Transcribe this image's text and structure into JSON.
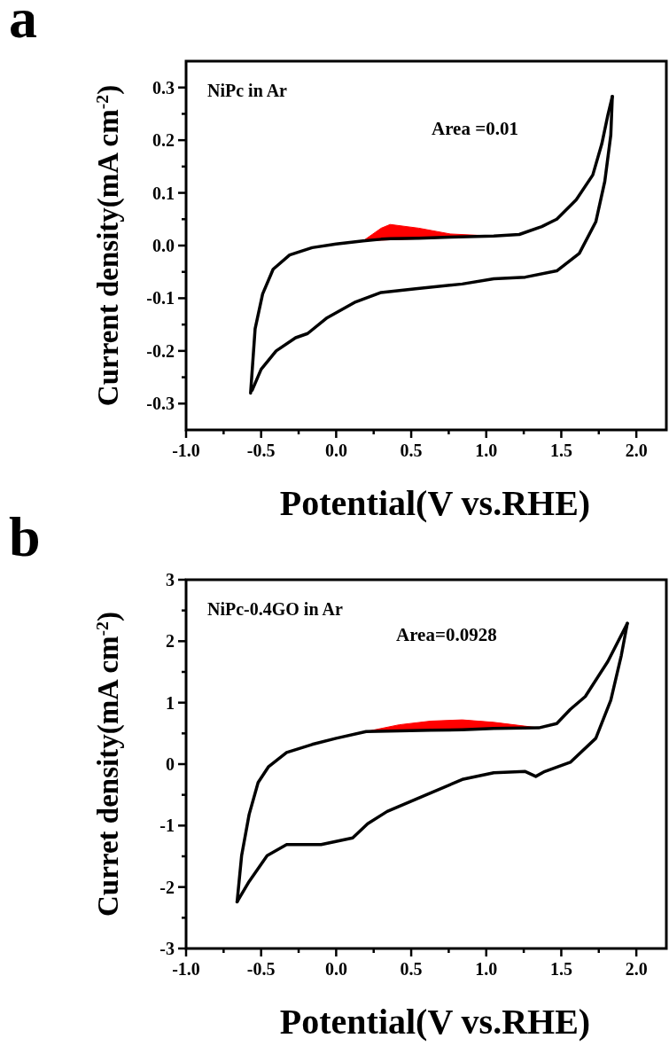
{
  "chart_data": [
    {
      "type": "line",
      "title": "a",
      "xlabel": "Potential(V vs.RHE)",
      "ylabel": "Current density(mA cm$^{-2}$)",
      "annotations": [
        "NiPc in Ar",
        "Area =0.01"
      ],
      "xlim": [
        -1,
        2.2
      ],
      "ylim": [
        -0.35,
        0.35
      ],
      "xticks": [
        {
          "value": -1,
          "label": "-1.0"
        },
        {
          "value": -0.75,
          "label": null
        },
        {
          "value": -0.5,
          "label": "-0.5"
        },
        {
          "value": -0.25,
          "label": null
        },
        {
          "value": 0,
          "label": "0.0"
        },
        {
          "value": 0.25,
          "label": null
        },
        {
          "value": 0.5,
          "label": "0.5"
        },
        {
          "value": 0.75,
          "label": null
        },
        {
          "value": 1,
          "label": "1.0"
        },
        {
          "value": 1.25,
          "label": null
        },
        {
          "value": 1.5,
          "label": "1.5"
        },
        {
          "value": 1.75,
          "label": null
        },
        {
          "value": 2,
          "label": "2.0"
        }
      ],
      "yticks": [
        {
          "value": -0.3,
          "label": "-0.3"
        },
        {
          "value": -0.25,
          "label": null
        },
        {
          "value": -0.2,
          "label": "-0.2"
        },
        {
          "value": -0.15,
          "label": null
        },
        {
          "value": -0.1,
          "label": "-0.1"
        },
        {
          "value": -0.05,
          "label": null
        },
        {
          "value": 0,
          "label": "0.0"
        },
        {
          "value": 0.05,
          "label": null
        },
        {
          "value": 0.1,
          "label": "0.1"
        },
        {
          "value": 0.15,
          "label": null
        },
        {
          "value": 0.2,
          "label": "0.2"
        },
        {
          "value": 0.25,
          "label": null
        },
        {
          "value": 0.3,
          "label": "0.3"
        }
      ],
      "series": [
        {
          "type": "area",
          "color": "#ff0000",
          "x": [
            0.18,
            0.3,
            0.36,
            0.55,
            0.76,
            1.05
          ],
          "values": [
            0.009,
            0.033,
            0.04,
            0.033,
            0.022,
            0.018
          ]
        },
        {
          "type": "line",
          "color": "#000000",
          "x": [
            -0.57,
            -0.54,
            -0.49,
            -0.42,
            -0.31,
            -0.16,
            0.0,
            0.18,
            0.3,
            0.36,
            0.55,
            0.76,
            1.05,
            1.22,
            1.37,
            1.47,
            1.6,
            1.71,
            1.77,
            1.81,
            1.84
          ],
          "values": [
            -0.28,
            -0.158,
            -0.092,
            -0.045,
            -0.018,
            -0.004,
            0.003,
            0.009,
            0.012,
            0.013,
            0.014,
            0.016,
            0.018,
            0.021,
            0.036,
            0.05,
            0.087,
            0.134,
            0.193,
            0.247,
            0.283
          ]
        },
        {
          "type": "line",
          "color": "#000000",
          "x": [
            1.84,
            1.83,
            1.79,
            1.73,
            1.62,
            1.47,
            1.26,
            1.05,
            0.84,
            0.53,
            0.3,
            0.13,
            -0.06,
            -0.19,
            -0.27,
            -0.4,
            -0.5,
            -0.56
          ],
          "values": [
            0.283,
            0.21,
            0.122,
            0.045,
            -0.015,
            -0.048,
            -0.06,
            -0.063,
            -0.073,
            -0.082,
            -0.089,
            -0.107,
            -0.137,
            -0.167,
            -0.175,
            -0.2,
            -0.235,
            -0.275
          ]
        }
      ]
    },
    {
      "type": "line",
      "title": "b",
      "xlabel": "Potential(V vs.RHE)",
      "ylabel": "Curret density(mA cm$^{-2}$)",
      "annotations": [
        "NiPc-0.4GO in Ar",
        "Area=0.0928"
      ],
      "xlim": [
        -1,
        2.2
      ],
      "ylim": [
        -3,
        3
      ],
      "xticks": [
        {
          "value": -1,
          "label": "-1.0"
        },
        {
          "value": -0.75,
          "label": null
        },
        {
          "value": -0.5,
          "label": "-0.5"
        },
        {
          "value": -0.25,
          "label": null
        },
        {
          "value": 0,
          "label": "0.0"
        },
        {
          "value": 0.25,
          "label": null
        },
        {
          "value": 0.5,
          "label": "0.5"
        },
        {
          "value": 0.75,
          "label": null
        },
        {
          "value": 1,
          "label": "1.0"
        },
        {
          "value": 1.25,
          "label": null
        },
        {
          "value": 1.5,
          "label": "1.5"
        },
        {
          "value": 1.75,
          "label": null
        },
        {
          "value": 2,
          "label": "2.0"
        }
      ],
      "yticks": [
        -3,
        {
          "value": -2.5,
          "label": null
        },
        -2,
        {
          "value": -1.5,
          "label": null
        },
        -1,
        {
          "value": -0.5,
          "label": null
        },
        0,
        {
          "value": 0.5,
          "label": null
        },
        1,
        {
          "value": 1.5,
          "label": null
        },
        2,
        {
          "value": 2.5,
          "label": null
        },
        3
      ],
      "series": [
        {
          "type": "area",
          "color": "#ff0000",
          "x": [
            0.2,
            0.42,
            0.63,
            0.84,
            1.05,
            1.35
          ],
          "values": [
            0.53,
            0.64,
            0.7,
            0.72,
            0.68,
            0.59
          ]
        },
        {
          "type": "line",
          "color": "#000000",
          "x": [
            -0.66,
            -0.63,
            -0.58,
            -0.52,
            -0.45,
            -0.33,
            -0.16,
            0.0,
            0.2,
            0.42,
            0.63,
            0.84,
            1.05,
            1.35,
            1.47,
            1.56,
            1.66,
            1.81,
            1.94
          ],
          "values": [
            -2.24,
            -1.49,
            -0.82,
            -0.3,
            -0.04,
            0.19,
            0.32,
            0.42,
            0.53,
            0.54,
            0.55,
            0.56,
            0.58,
            0.59,
            0.66,
            0.89,
            1.1,
            1.67,
            2.29
          ]
        },
        {
          "type": "line",
          "color": "#000000",
          "x": [
            1.94,
            1.9,
            1.83,
            1.73,
            1.56,
            1.39,
            1.33,
            1.26,
            1.05,
            0.84,
            0.59,
            0.34,
            0.21,
            0.11,
            -0.1,
            -0.33,
            -0.46,
            -0.58,
            -0.66
          ],
          "values": [
            2.29,
            1.77,
            1.04,
            0.42,
            0.03,
            -0.12,
            -0.2,
            -0.12,
            -0.14,
            -0.25,
            -0.51,
            -0.77,
            -0.97,
            -1.2,
            -1.31,
            -1.31,
            -1.49,
            -1.91,
            -2.24
          ]
        }
      ]
    }
  ]
}
